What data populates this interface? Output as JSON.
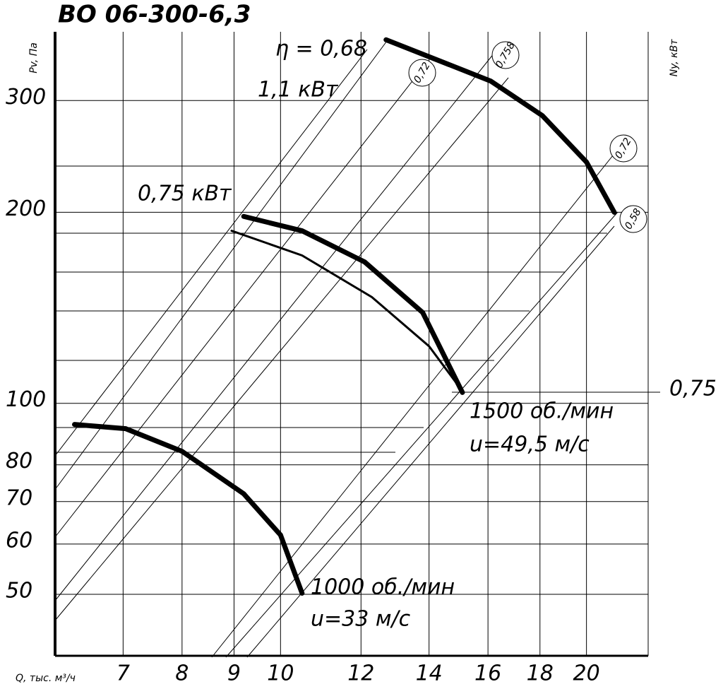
{
  "chart_data": {
    "type": "line",
    "title": "ВО 06-300-6,3",
    "y_label": "Pv, Па",
    "y2_label": "Ny, кВт",
    "x_label": "Q, тыс. м³/ч",
    "log_x": true,
    "log_y": true,
    "grid": true,
    "xlim": [
      6,
      23
    ],
    "xticks": [
      7,
      8,
      9,
      10,
      12,
      14,
      16,
      18,
      20
    ],
    "ylim": [
      40,
      385
    ],
    "yticks": [
      50,
      60,
      70,
      80,
      100,
      200,
      300
    ],
    "y2lim": [
      0.29,
      2.75
    ],
    "y2ticks": [
      {
        "value": 0.75,
        "label": "0,75"
      }
    ],
    "series": [
      {
        "name": "1,1 кВт",
        "color": "#000000",
        "width": 7,
        "x": [
          12.7,
          16.1,
          18.1,
          20.0,
          21.3
        ],
        "values": [
          374,
          322,
          284,
          240,
          200
        ]
      },
      {
        "name": "0,75 кВт",
        "color": "#000000",
        "width": 7,
        "x": [
          9.2,
          10.5,
          12.1,
          13.8,
          15.1
        ],
        "values": [
          197,
          187,
          167,
          139,
          104
        ]
      },
      {
        "color": "#000000",
        "width": 3,
        "x": [
          8.95,
          10.5,
          12.3,
          14.0,
          15.0
        ],
        "values": [
          187,
          171,
          147,
          123,
          106
        ]
      },
      {
        "name": "1000 об./мин",
        "color": "#000000",
        "width": 7,
        "x": [
          6.27,
          7.04,
          8.0,
          9.2,
          10.0,
          10.5
        ],
        "values": [
          92.6,
          91.2,
          84,
          72,
          62,
          50.2
        ]
      }
    ],
    "annotations": [
      "η = 0,68",
      "1500 об./мин",
      "u=49,5 м/с",
      "u=33 м/с",
      "0,72",
      "0,758",
      "0,72",
      "0,58"
    ]
  }
}
